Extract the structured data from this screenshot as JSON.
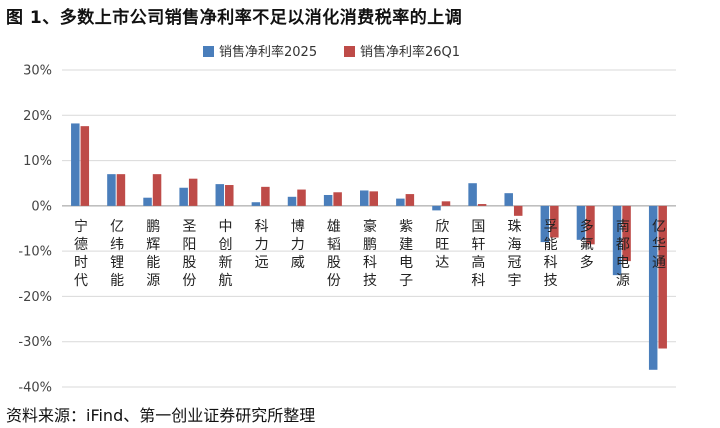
{
  "figure_title": "图 1、多数上市公司销售净利率不足以消化消费税率的上调",
  "source_note": "资料来源：iFind、第一创业证券研究所整理",
  "colors": {
    "series1": "#4a7ebb",
    "series2": "#be4b48",
    "grid": "#d9d9d9",
    "axis": "#999999"
  },
  "chart_data": {
    "type": "bar",
    "title": "",
    "xlabel": "",
    "ylabel": "",
    "ylim": [
      -40,
      30
    ],
    "yticks": [
      30,
      20,
      10,
      0,
      -10,
      -20,
      -30,
      -40
    ],
    "ytick_labels": [
      "30%",
      "20%",
      "10%",
      "0%",
      "-10%",
      "-20%",
      "-30%",
      "-40%"
    ],
    "grid": true,
    "legend_position": "top-center",
    "categories": [
      "宁德时代",
      "亿纬锂能",
      "鹏辉能源",
      "圣阳股份",
      "中创新航",
      "科力远",
      "博力威",
      "雄韬股份",
      "豪鹏科技",
      "紫建电子",
      "欣旺达",
      "国轩高科",
      "珠海冠宇",
      "孚能科技",
      "多氟多",
      "南都电源",
      "亿华通"
    ],
    "series": [
      {
        "name": "销售净利率2025",
        "values": [
          18.2,
          7.0,
          1.8,
          4.0,
          4.8,
          0.8,
          2.0,
          2.4,
          3.4,
          1.6,
          -1.0,
          5.0,
          2.8,
          -8.0,
          -7.5,
          -15.3,
          -36.2
        ]
      },
      {
        "name": "销售净利率26Q1",
        "values": [
          17.6,
          7.0,
          7.0,
          6.0,
          4.6,
          4.2,
          3.6,
          3.0,
          3.2,
          2.6,
          1.0,
          0.4,
          -2.2,
          -7.0,
          -8.5,
          -12.2,
          -31.5
        ]
      }
    ]
  }
}
